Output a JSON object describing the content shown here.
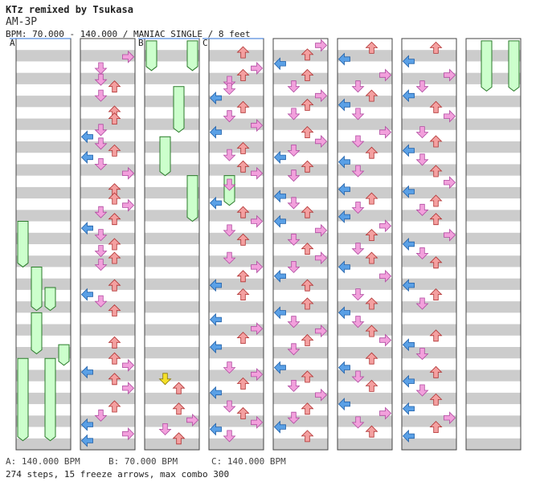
{
  "song": {
    "title": "KTz remixed by Tsukasa",
    "artist": "AM-3P",
    "info": "BPM: 70.000 - 140.000 / MANIAC SINGLE / 8 feet"
  },
  "footer": {
    "bpm_a": "A: 140.000 BPM",
    "bpm_b": "B: 70.000 BPM",
    "bpm_c": "C: 140.000 BPM",
    "stats": "274 steps, 15 freeze arrows, max combo 300"
  },
  "chart_data": {
    "type": "step-chart",
    "mode": "MANIAC SINGLE",
    "bpm_range": [
      70,
      140
    ],
    "columns": 8,
    "bpm_markers": [
      {
        "label": "A",
        "column": 0,
        "measure": 0
      },
      {
        "label": "B",
        "column": 2,
        "measure": 0
      },
      {
        "label": "C",
        "column": 3,
        "measure": 0
      }
    ],
    "colors": {
      "left": "#5aa0e6",
      "down": "#f08ec6",
      "up": "#f08a8a",
      "right": "#f08ec6",
      "freeze": "#ccffcc",
      "shock": "#f5e02a",
      "stripe": "#cccccc"
    },
    "arrows": [
      {
        "c": 1,
        "r": 0.8,
        "l": 3
      },
      {
        "c": 1,
        "r": 1.3,
        "l": 1
      },
      {
        "c": 1,
        "r": 1.8,
        "l": 1
      },
      {
        "c": 1,
        "r": 2.1,
        "l": 2
      },
      {
        "c": 1,
        "r": 2.5,
        "l": 1
      },
      {
        "c": 1,
        "r": 3.2,
        "l": 2
      },
      {
        "c": 1,
        "r": 3.5,
        "l": 2
      },
      {
        "c": 1,
        "r": 4.0,
        "l": 1
      },
      {
        "c": 1,
        "r": 4.3,
        "l": 0
      },
      {
        "c": 1,
        "r": 4.6,
        "l": 1
      },
      {
        "c": 1,
        "r": 4.9,
        "l": 2
      },
      {
        "c": 1,
        "r": 5.2,
        "l": 0
      },
      {
        "c": 1,
        "r": 5.5,
        "l": 1
      },
      {
        "c": 1,
        "r": 5.9,
        "l": 3
      },
      {
        "c": 1,
        "r": 6.6,
        "l": 2
      },
      {
        "c": 1,
        "r": 7.0,
        "l": 2
      },
      {
        "c": 1,
        "r": 7.3,
        "l": 3
      },
      {
        "c": 1,
        "r": 7.6,
        "l": 1
      },
      {
        "c": 1,
        "r": 7.9,
        "l": 2
      },
      {
        "c": 1,
        "r": 8.3,
        "l": 0
      },
      {
        "c": 1,
        "r": 8.6,
        "l": 1
      },
      {
        "c": 1,
        "r": 9.0,
        "l": 2
      },
      {
        "c": 1,
        "r": 9.3,
        "l": 1
      },
      {
        "c": 1,
        "r": 9.6,
        "l": 2
      },
      {
        "c": 1,
        "r": 9.9,
        "l": 1
      },
      {
        "c": 1,
        "r": 10.8,
        "l": 2
      },
      {
        "c": 1,
        "r": 11.2,
        "l": 0
      },
      {
        "c": 1,
        "r": 11.5,
        "l": 1
      },
      {
        "c": 1,
        "r": 11.9,
        "l": 2
      },
      {
        "c": 1,
        "r": 13.3,
        "l": 2
      },
      {
        "c": 1,
        "r": 14.0,
        "l": 2
      },
      {
        "c": 1,
        "r": 14.3,
        "l": 3
      },
      {
        "c": 1,
        "r": 14.6,
        "l": 0
      },
      {
        "c": 1,
        "r": 14.9,
        "l": 2
      },
      {
        "c": 1,
        "r": 15.3,
        "l": 3
      },
      {
        "c": 1,
        "r": 16.1,
        "l": 2
      },
      {
        "c": 1,
        "r": 16.5,
        "l": 1
      },
      {
        "c": 1,
        "r": 16.9,
        "l": 0
      },
      {
        "c": 1,
        "r": 17.3,
        "l": 3
      },
      {
        "c": 1,
        "r": 17.6,
        "l": 0
      },
      {
        "c": 2,
        "r": 14.9,
        "l": 1,
        "shock": true
      },
      {
        "c": 2,
        "r": 15.3,
        "l": 2
      },
      {
        "c": 2,
        "r": 16.2,
        "l": 2
      },
      {
        "c": 2,
        "r": 16.7,
        "l": 3
      },
      {
        "c": 2,
        "r": 17.1,
        "l": 1
      },
      {
        "c": 2,
        "r": 17.5,
        "l": 2
      },
      {
        "c": 3,
        "r": 0.6,
        "l": 2
      },
      {
        "c": 3,
        "r": 1.3,
        "l": 3
      },
      {
        "c": 3,
        "r": 1.6,
        "l": 2
      },
      {
        "c": 3,
        "r": 1.9,
        "l": 1
      },
      {
        "c": 3,
        "r": 2.2,
        "l": 1
      },
      {
        "c": 3,
        "r": 2.6,
        "l": 0
      },
      {
        "c": 3,
        "r": 3.0,
        "l": 2
      },
      {
        "c": 3,
        "r": 3.4,
        "l": 1
      },
      {
        "c": 3,
        "r": 3.8,
        "l": 3
      },
      {
        "c": 3,
        "r": 4.1,
        "l": 0
      },
      {
        "c": 3,
        "r": 4.8,
        "l": 2
      },
      {
        "c": 3,
        "r": 5.1,
        "l": 1
      },
      {
        "c": 3,
        "r": 5.6,
        "l": 2
      },
      {
        "c": 3,
        "r": 5.9,
        "l": 3
      },
      {
        "c": 3,
        "r": 6.4,
        "l": 1
      },
      {
        "c": 3,
        "r": 7.2,
        "l": 0
      },
      {
        "c": 3,
        "r": 7.6,
        "l": 2
      },
      {
        "c": 3,
        "r": 8.0,
        "l": 3
      },
      {
        "c": 3,
        "r": 8.4,
        "l": 1
      },
      {
        "c": 3,
        "r": 8.8,
        "l": 2
      },
      {
        "c": 3,
        "r": 9.6,
        "l": 1
      },
      {
        "c": 3,
        "r": 10.0,
        "l": 3
      },
      {
        "c": 3,
        "r": 10.4,
        "l": 2
      },
      {
        "c": 3,
        "r": 10.8,
        "l": 0
      },
      {
        "c": 3,
        "r": 11.2,
        "l": 2
      },
      {
        "c": 3,
        "r": 12.3,
        "l": 0
      },
      {
        "c": 3,
        "r": 12.7,
        "l": 3
      },
      {
        "c": 3,
        "r": 13.1,
        "l": 2
      },
      {
        "c": 3,
        "r": 13.5,
        "l": 0
      },
      {
        "c": 3,
        "r": 14.4,
        "l": 1
      },
      {
        "c": 3,
        "r": 14.7,
        "l": 3
      },
      {
        "c": 3,
        "r": 15.1,
        "l": 2
      },
      {
        "c": 3,
        "r": 15.5,
        "l": 0
      },
      {
        "c": 3,
        "r": 16.1,
        "l": 1
      },
      {
        "c": 3,
        "r": 16.4,
        "l": 2
      },
      {
        "c": 3,
        "r": 16.8,
        "l": 3
      },
      {
        "c": 3,
        "r": 17.1,
        "l": 0
      },
      {
        "c": 3,
        "r": 17.4,
        "l": 1
      },
      {
        "c": 4,
        "r": 0.3,
        "l": 3
      },
      {
        "c": 4,
        "r": 0.7,
        "l": 2
      },
      {
        "c": 4,
        "r": 1.1,
        "l": 0
      },
      {
        "c": 4,
        "r": 1.6,
        "l": 2
      },
      {
        "c": 4,
        "r": 2.1,
        "l": 1
      },
      {
        "c": 4,
        "r": 2.5,
        "l": 3
      },
      {
        "c": 4,
        "r": 2.9,
        "l": 2
      },
      {
        "c": 4,
        "r": 3.3,
        "l": 1
      },
      {
        "c": 4,
        "r": 4.1,
        "l": 2
      },
      {
        "c": 4,
        "r": 4.5,
        "l": 3
      },
      {
        "c": 4,
        "r": 4.9,
        "l": 1
      },
      {
        "c": 4,
        "r": 5.2,
        "l": 0
      },
      {
        "c": 4,
        "r": 5.6,
        "l": 2
      },
      {
        "c": 4,
        "r": 6.0,
        "l": 1
      },
      {
        "c": 4,
        "r": 6.9,
        "l": 0
      },
      {
        "c": 4,
        "r": 7.2,
        "l": 1
      },
      {
        "c": 4,
        "r": 7.6,
        "l": 2
      },
      {
        "c": 4,
        "r": 8.0,
        "l": 0
      },
      {
        "c": 4,
        "r": 8.4,
        "l": 3
      },
      {
        "c": 4,
        "r": 8.8,
        "l": 1
      },
      {
        "c": 4,
        "r": 9.2,
        "l": 2
      },
      {
        "c": 4,
        "r": 9.6,
        "l": 3
      },
      {
        "c": 4,
        "r": 10.0,
        "l": 1
      },
      {
        "c": 4,
        "r": 10.4,
        "l": 0
      },
      {
        "c": 4,
        "r": 10.8,
        "l": 2
      },
      {
        "c": 4,
        "r": 11.6,
        "l": 2
      },
      {
        "c": 4,
        "r": 12.0,
        "l": 0
      },
      {
        "c": 4,
        "r": 12.4,
        "l": 1
      },
      {
        "c": 4,
        "r": 12.8,
        "l": 3
      },
      {
        "c": 4,
        "r": 13.2,
        "l": 2
      },
      {
        "c": 4,
        "r": 13.6,
        "l": 1
      },
      {
        "c": 4,
        "r": 14.4,
        "l": 0
      },
      {
        "c": 4,
        "r": 14.8,
        "l": 2
      },
      {
        "c": 4,
        "r": 15.2,
        "l": 1
      },
      {
        "c": 4,
        "r": 15.6,
        "l": 3
      },
      {
        "c": 4,
        "r": 16.2,
        "l": 2
      },
      {
        "c": 4,
        "r": 16.6,
        "l": 1
      },
      {
        "c": 4,
        "r": 17.0,
        "l": 0
      },
      {
        "c": 4,
        "r": 17.4,
        "l": 2
      },
      {
        "c": 5,
        "r": 0.4,
        "l": 2
      },
      {
        "c": 5,
        "r": 0.9,
        "l": 0
      },
      {
        "c": 5,
        "r": 1.6,
        "l": 3
      },
      {
        "c": 5,
        "r": 2.1,
        "l": 1
      },
      {
        "c": 5,
        "r": 2.5,
        "l": 2
      },
      {
        "c": 5,
        "r": 2.9,
        "l": 0
      },
      {
        "c": 5,
        "r": 3.3,
        "l": 1
      },
      {
        "c": 5,
        "r": 4.1,
        "l": 3
      },
      {
        "c": 5,
        "r": 4.5,
        "l": 1
      },
      {
        "c": 5,
        "r": 5.0,
        "l": 2
      },
      {
        "c": 5,
        "r": 5.4,
        "l": 0
      },
      {
        "c": 5,
        "r": 5.8,
        "l": 1
      },
      {
        "c": 5,
        "r": 6.6,
        "l": 0
      },
      {
        "c": 5,
        "r": 7.0,
        "l": 2
      },
      {
        "c": 5,
        "r": 7.4,
        "l": 1
      },
      {
        "c": 5,
        "r": 7.8,
        "l": 0
      },
      {
        "c": 5,
        "r": 8.2,
        "l": 3
      },
      {
        "c": 5,
        "r": 8.6,
        "l": 2
      },
      {
        "c": 5,
        "r": 9.2,
        "l": 1
      },
      {
        "c": 5,
        "r": 9.6,
        "l": 2
      },
      {
        "c": 5,
        "r": 10.0,
        "l": 0
      },
      {
        "c": 5,
        "r": 10.4,
        "l": 3
      },
      {
        "c": 5,
        "r": 11.2,
        "l": 1
      },
      {
        "c": 5,
        "r": 11.6,
        "l": 2
      },
      {
        "c": 5,
        "r": 12.0,
        "l": 0
      },
      {
        "c": 5,
        "r": 12.4,
        "l": 1
      },
      {
        "c": 5,
        "r": 12.8,
        "l": 2
      },
      {
        "c": 5,
        "r": 13.2,
        "l": 3
      },
      {
        "c": 5,
        "r": 14.0,
        "l": 2
      },
      {
        "c": 5,
        "r": 14.4,
        "l": 0
      },
      {
        "c": 5,
        "r": 14.8,
        "l": 1
      },
      {
        "c": 5,
        "r": 15.2,
        "l": 2
      },
      {
        "c": 5,
        "r": 16.0,
        "l": 0
      },
      {
        "c": 5,
        "r": 16.4,
        "l": 3
      },
      {
        "c": 5,
        "r": 16.8,
        "l": 1
      },
      {
        "c": 5,
        "r": 17.2,
        "l": 2
      },
      {
        "c": 6,
        "r": 0.4,
        "l": 2
      },
      {
        "c": 6,
        "r": 1.0,
        "l": 0
      },
      {
        "c": 6,
        "r": 1.6,
        "l": 3
      },
      {
        "c": 6,
        "r": 2.1,
        "l": 1
      },
      {
        "c": 6,
        "r": 2.5,
        "l": 0
      },
      {
        "c": 6,
        "r": 3.0,
        "l": 2
      },
      {
        "c": 6,
        "r": 3.4,
        "l": 3
      },
      {
        "c": 6,
        "r": 4.1,
        "l": 1
      },
      {
        "c": 6,
        "r": 4.5,
        "l": 2
      },
      {
        "c": 6,
        "r": 4.9,
        "l": 0
      },
      {
        "c": 6,
        "r": 5.3,
        "l": 1
      },
      {
        "c": 6,
        "r": 5.8,
        "l": 2
      },
      {
        "c": 6,
        "r": 6.3,
        "l": 3
      },
      {
        "c": 6,
        "r": 6.7,
        "l": 0
      },
      {
        "c": 6,
        "r": 7.1,
        "l": 2
      },
      {
        "c": 6,
        "r": 7.5,
        "l": 1
      },
      {
        "c": 6,
        "r": 7.9,
        "l": 2
      },
      {
        "c": 6,
        "r": 8.6,
        "l": 3
      },
      {
        "c": 6,
        "r": 9.0,
        "l": 0
      },
      {
        "c": 6,
        "r": 9.4,
        "l": 1
      },
      {
        "c": 6,
        "r": 9.8,
        "l": 2
      },
      {
        "c": 6,
        "r": 10.8,
        "l": 0
      },
      {
        "c": 6,
        "r": 11.2,
        "l": 2
      },
      {
        "c": 6,
        "r": 11.6,
        "l": 1
      },
      {
        "c": 6,
        "r": 13.0,
        "l": 2
      },
      {
        "c": 6,
        "r": 13.4,
        "l": 0
      },
      {
        "c": 6,
        "r": 13.8,
        "l": 1
      },
      {
        "c": 6,
        "r": 14.6,
        "l": 2
      },
      {
        "c": 6,
        "r": 15.0,
        "l": 0
      },
      {
        "c": 6,
        "r": 15.4,
        "l": 1
      },
      {
        "c": 6,
        "r": 15.8,
        "l": 2
      },
      {
        "c": 6,
        "r": 16.2,
        "l": 0
      },
      {
        "c": 6,
        "r": 16.6,
        "l": 3
      },
      {
        "c": 6,
        "r": 17.0,
        "l": 2
      },
      {
        "c": 6,
        "r": 17.4,
        "l": 0
      }
    ],
    "freezes": [
      {
        "c": 0,
        "r0": 8.0,
        "r1": 10.0,
        "l": 0
      },
      {
        "c": 0,
        "r0": 14.0,
        "r1": 17.6,
        "l": 0
      },
      {
        "c": 0,
        "r0": 14.0,
        "r1": 17.6,
        "l": 2
      },
      {
        "c": 0,
        "r0": 10.0,
        "r1": 11.9,
        "l": 1
      },
      {
        "c": 0,
        "r0": 10.9,
        "r1": 11.9,
        "l": 2
      },
      {
        "c": 0,
        "r0": 12.0,
        "r1": 13.8,
        "l": 1
      },
      {
        "c": 0,
        "r0": 13.4,
        "r1": 14.3,
        "l": 3
      },
      {
        "c": 2,
        "r0": 0.1,
        "r1": 1.4,
        "l": 0
      },
      {
        "c": 2,
        "r0": 0.1,
        "r1": 1.4,
        "l": 3
      },
      {
        "c": 2,
        "r0": 2.1,
        "r1": 4.1,
        "l": 2
      },
      {
        "c": 2,
        "r0": 4.3,
        "r1": 6.0,
        "l": 1
      },
      {
        "c": 2,
        "r0": 6.0,
        "r1": 8.0,
        "l": 3
      },
      {
        "c": 3,
        "r0": 6.0,
        "r1": 7.3,
        "l": 1
      },
      {
        "c": 7,
        "r0": 0.1,
        "r1": 2.3,
        "l": 1
      },
      {
        "c": 7,
        "r0": 0.1,
        "r1": 2.3,
        "l": 3
      }
    ]
  }
}
